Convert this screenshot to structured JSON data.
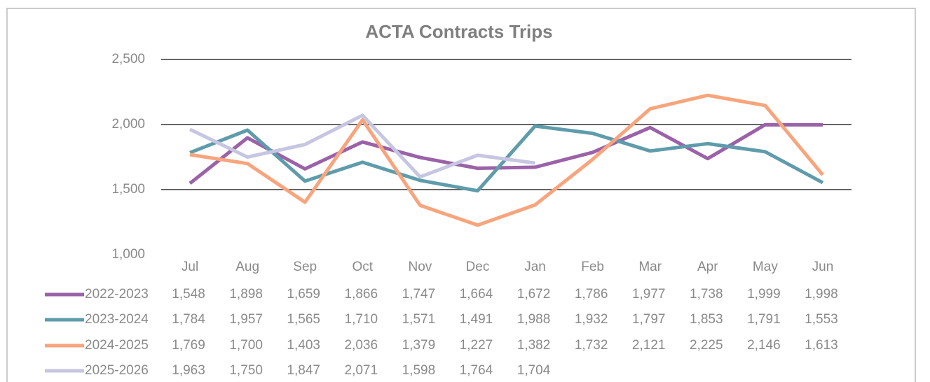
{
  "chart_data": {
    "type": "line",
    "title": "ACTA Contracts Trips",
    "categories": [
      "Jul",
      "Aug",
      "Sep",
      "Oct",
      "Nov",
      "Dec",
      "Jan",
      "Feb",
      "Mar",
      "Apr",
      "May",
      "Jun"
    ],
    "series": [
      {
        "name": "2022-2023",
        "color": "#9b62a8",
        "values": [
          1548,
          1898,
          1659,
          1866,
          1747,
          1664,
          1672,
          1786,
          1977,
          1738,
          1999,
          1998
        ],
        "value_labels": [
          "1,548",
          "1,898",
          "1,659",
          "1,866",
          "1,747",
          "1,664",
          "1,672",
          "1,786",
          "1,977",
          "1,738",
          "1,999",
          "1,998"
        ]
      },
      {
        "name": "2023-2024",
        "color": "#5f9cab",
        "values": [
          1784,
          1957,
          1565,
          1710,
          1571,
          1491,
          1988,
          1932,
          1797,
          1853,
          1791,
          1553
        ],
        "value_labels": [
          "1,784",
          "1,957",
          "1,565",
          "1,710",
          "1,571",
          "1,491",
          "1,988",
          "1,932",
          "1,797",
          "1,853",
          "1,791",
          "1,553"
        ]
      },
      {
        "name": "2024-2025",
        "color": "#f8a47c",
        "values": [
          1769,
          1700,
          1403,
          2036,
          1379,
          1227,
          1382,
          1732,
          2121,
          2225,
          2146,
          1613
        ],
        "value_labels": [
          "1,769",
          "1,700",
          "1,403",
          "2,036",
          "1,379",
          "1,227",
          "1,382",
          "1,732",
          "2,121",
          "2,225",
          "2,146",
          "1,613"
        ]
      },
      {
        "name": "2025-2026",
        "color": "#c6c6e2",
        "values": [
          1963,
          1750,
          1847,
          2071,
          1598,
          1764,
          1704,
          null,
          null,
          null,
          null,
          null
        ],
        "value_labels": [
          "1,963",
          "1,750",
          "1,847",
          "2,071",
          "1,598",
          "1,764",
          "1,704",
          null,
          null,
          null,
          null,
          null
        ]
      }
    ],
    "ylim": [
      1000,
      2500
    ],
    "yticks": [
      {
        "value": 1000,
        "label": "1,000"
      },
      {
        "value": 1500,
        "label": "1,500"
      },
      {
        "value": 2000,
        "label": "2,000"
      },
      {
        "value": 2500,
        "label": "2,500"
      }
    ],
    "grid": true
  }
}
